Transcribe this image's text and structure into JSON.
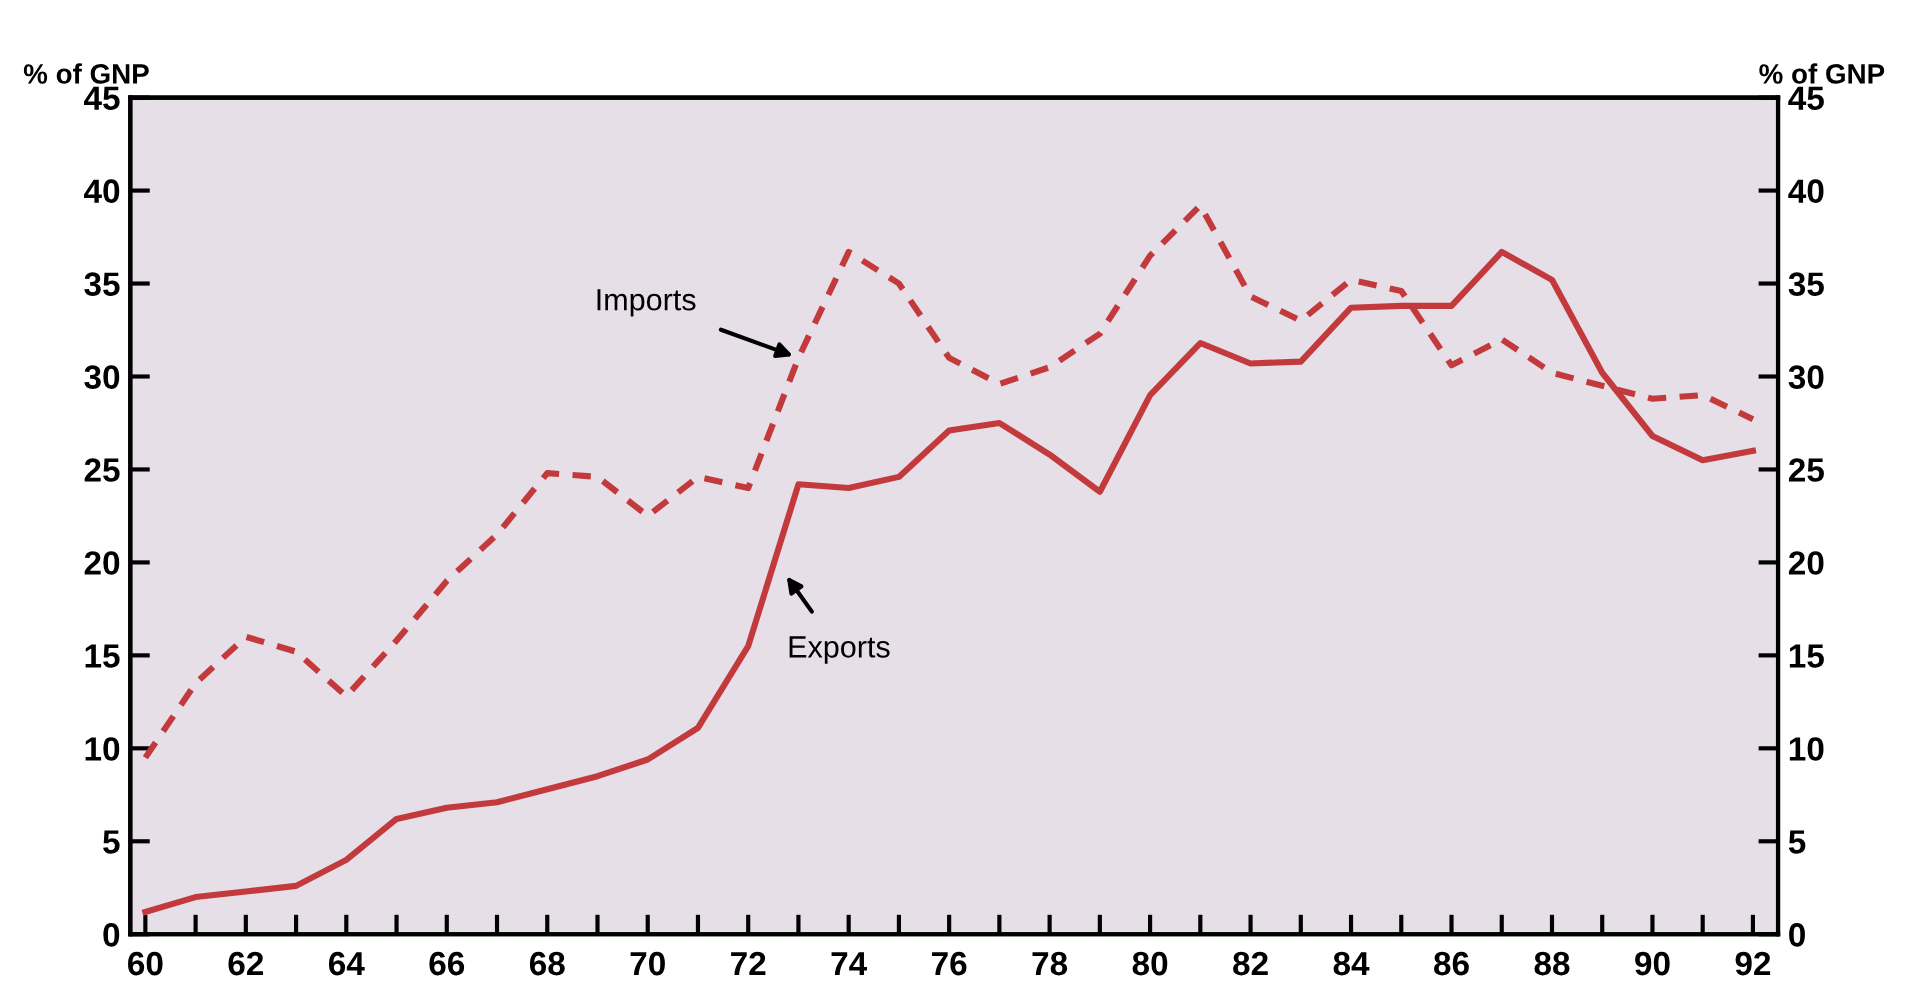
{
  "chart_data": {
    "type": "line",
    "ylabel": "% of GNP",
    "y2label": "% of GNP",
    "x": [
      60,
      61,
      62,
      63,
      64,
      65,
      66,
      67,
      68,
      69,
      70,
      71,
      72,
      73,
      74,
      75,
      76,
      77,
      78,
      79,
      80,
      81,
      82,
      83,
      84,
      85,
      86,
      87,
      88,
      89,
      90,
      91,
      92
    ],
    "series": [
      {
        "color": "#c23a3c",
        "line_style": "solid",
        "values": [
          1.2,
          2.0,
          2.3,
          2.6,
          4.0,
          6.2,
          6.8,
          7.1,
          7.8,
          8.5,
          9.4,
          11.1,
          15.5,
          24.2,
          24.0,
          24.6,
          27.1,
          27.5,
          25.8,
          23.8,
          29.0,
          31.8,
          30.7,
          30.8,
          33.7,
          33.8,
          33.8,
          36.7,
          35.2,
          30.2,
          26.8,
          25.5,
          26.0
        ]
      },
      {
        "color": "#c23a3c",
        "line_style": "dashed",
        "values": [
          9.5,
          13.5,
          16.0,
          15.2,
          12.8,
          15.8,
          19.0,
          21.5,
          24.8,
          24.6,
          22.5,
          24.6,
          24.0,
          31.0,
          36.7,
          35.0,
          31.0,
          29.6,
          30.5,
          32.3,
          36.5,
          39.2,
          34.3,
          33.0,
          35.2,
          34.6,
          30.6,
          32.0,
          30.2,
          29.5,
          28.8,
          29.0,
          27.7
        ]
      }
    ],
    "annotations": [
      {
        "text": "Imports",
        "x": 73,
        "y": 31.0
      },
      {
        "text": "Exports",
        "x": 72.7,
        "y": 19.5
      }
    ],
    "xlim": [
      59.7,
      92.5
    ],
    "xticks": [
      60,
      {
        "value": 61,
        "label": null
      },
      62,
      {
        "value": 63,
        "label": null
      },
      64,
      {
        "value": 65,
        "label": null
      },
      66,
      {
        "value": 67,
        "label": null
      },
      68,
      {
        "value": 69,
        "label": null
      },
      70,
      {
        "value": 71,
        "label": null
      },
      72,
      {
        "value": 73,
        "label": null
      },
      74,
      {
        "value": 75,
        "label": null
      },
      76,
      {
        "value": 77,
        "label": null
      },
      78,
      {
        "value": 79,
        "label": null
      },
      80,
      {
        "value": 81,
        "label": null
      },
      82,
      {
        "value": 83,
        "label": null
      },
      84,
      {
        "value": 85,
        "label": null
      },
      86,
      {
        "value": 87,
        "label": null
      },
      88,
      {
        "value": 89,
        "label": null
      },
      90,
      {
        "value": 91,
        "label": null
      },
      92
    ],
    "ylim": [
      0,
      45
    ],
    "yticks": [
      0,
      5,
      10,
      15,
      20,
      25,
      30,
      35,
      40,
      45
    ],
    "y2lim": [
      0,
      45
    ],
    "y2ticks": [
      0,
      5,
      10,
      15,
      20,
      25,
      30,
      35,
      40,
      45
    ],
    "grid": false,
    "legend": false,
    "marker": "none"
  }
}
